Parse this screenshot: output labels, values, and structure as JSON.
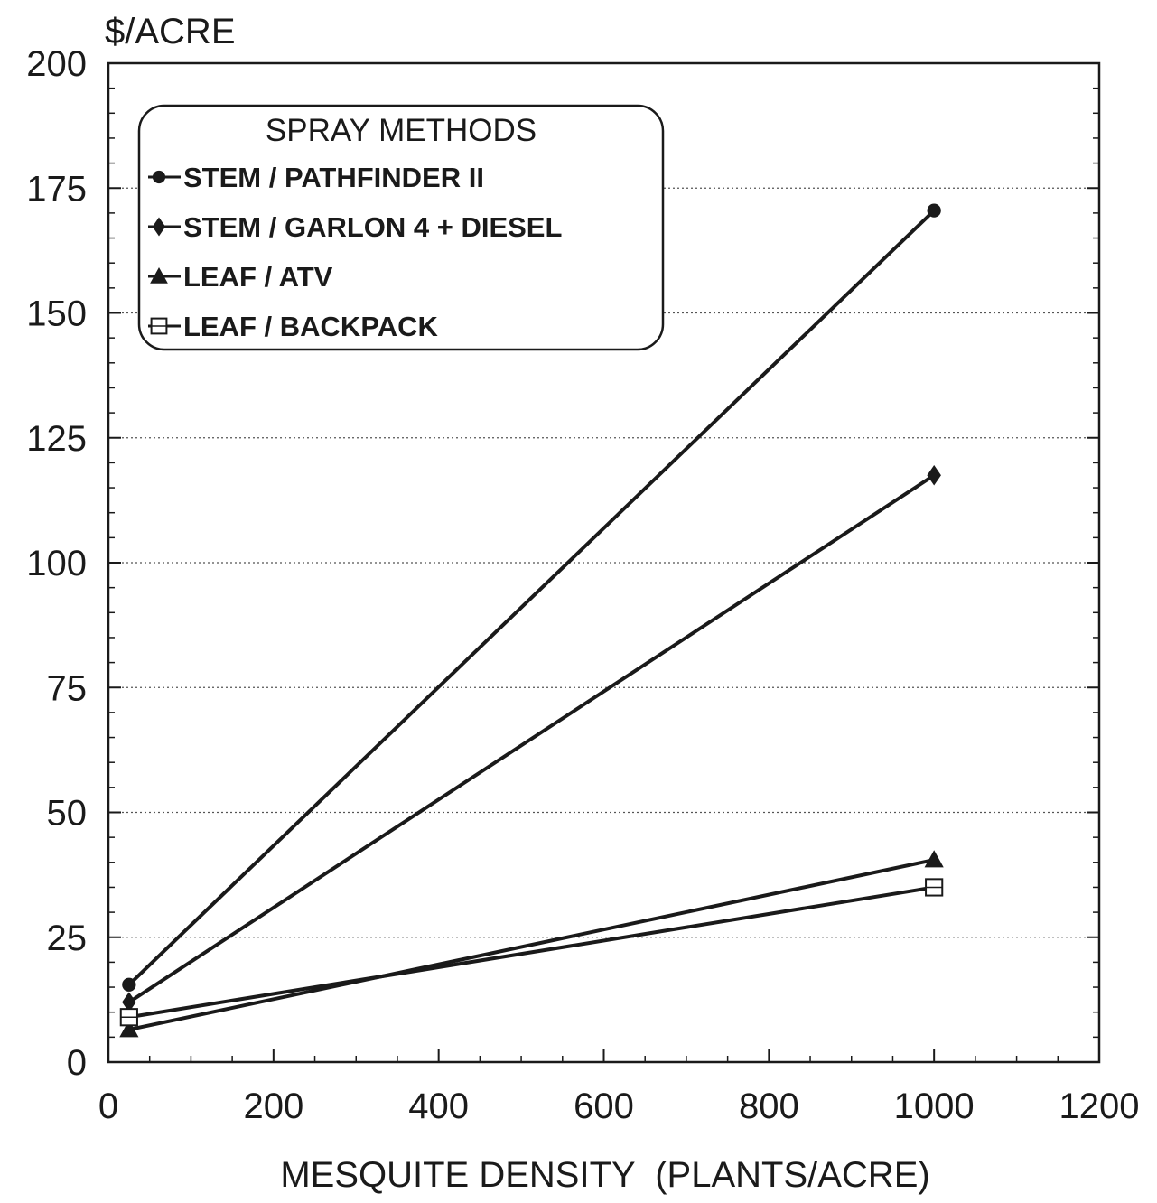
{
  "chart_data": {
    "type": "line",
    "ylabel": "$/ACRE",
    "xlabel": "MESQUITE DENSITY  (PLANTS/ACRE)",
    "xlim": [
      0,
      1200
    ],
    "ylim": [
      0,
      200
    ],
    "xticks": [
      0,
      200,
      400,
      600,
      800,
      1000,
      1200
    ],
    "yticks": [
      0,
      25,
      50,
      75,
      100,
      125,
      150,
      175,
      200
    ],
    "xtick_labels": [
      "0",
      "200",
      "400",
      "600",
      "800",
      "1000",
      "1200"
    ],
    "ytick_labels": [
      "0",
      "25",
      "50",
      "75",
      "100",
      "125",
      "150",
      "175",
      "200"
    ],
    "grid": "horizontal dotted",
    "legend": {
      "title": "SPRAY METHODS",
      "position": "top-left"
    },
    "series": [
      {
        "name": "STEM / PATHFINDER II",
        "marker": "circle",
        "x": [
          25,
          1000
        ],
        "y": [
          15.5,
          170.5
        ]
      },
      {
        "name": "STEM / GARLON 4 + DIESEL",
        "marker": "diamond",
        "x": [
          25,
          1000
        ],
        "y": [
          12,
          117.5
        ]
      },
      {
        "name": "LEAF / ATV",
        "marker": "triangle",
        "x": [
          25,
          1000
        ],
        "y": [
          6.5,
          40.5
        ]
      },
      {
        "name": "LEAF / BACKPACK",
        "marker": "open-square",
        "x": [
          25,
          1000
        ],
        "y": [
          9,
          35
        ]
      }
    ],
    "colors": {
      "ink": "#1a1a1a",
      "grid": "#555555",
      "background": "#ffffff"
    }
  }
}
